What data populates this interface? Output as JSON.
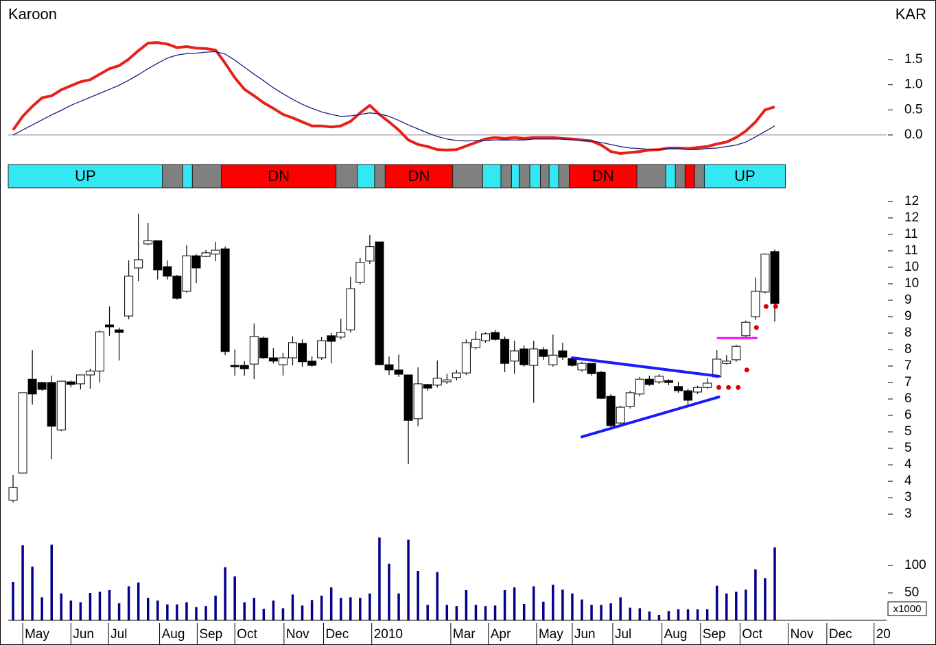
{
  "chart_data": [
    {
      "type": "line",
      "title": "Karoon",
      "symbol": "KAR",
      "series": [
        {
          "color": "#e8201a",
          "values": [
            0.1,
            0.37,
            0.57,
            0.74,
            0.78,
            0.9,
            0.98,
            1.06,
            1.1,
            1.21,
            1.32,
            1.38,
            1.51,
            1.68,
            1.83,
            1.84,
            1.81,
            1.74,
            1.76,
            1.73,
            1.72,
            1.69,
            1.43,
            1.14,
            0.91,
            0.78,
            0.64,
            0.53,
            0.41,
            0.34,
            0.26,
            0.18,
            0.18,
            0.16,
            0.18,
            0.27,
            0.44,
            0.59,
            0.41,
            0.26,
            0.1,
            -0.1,
            -0.19,
            -0.23,
            -0.29,
            -0.3,
            -0.29,
            -0.22,
            -0.15,
            -0.08,
            -0.05,
            -0.07,
            -0.05,
            -0.07,
            -0.05,
            -0.05,
            -0.05,
            -0.07,
            -0.08,
            -0.1,
            -0.12,
            -0.2,
            -0.33,
            -0.37,
            -0.35,
            -0.33,
            -0.3,
            -0.29,
            -0.26,
            -0.26,
            -0.27,
            -0.25,
            -0.23,
            -0.18,
            -0.14,
            -0.05,
            0.08,
            0.26,
            0.5,
            0.56
          ]
        },
        {
          "color": "#1c1c80",
          "values": [
            0,
            0.1,
            0.2,
            0.3,
            0.4,
            0.49,
            0.59,
            0.67,
            0.75,
            0.83,
            0.91,
            0.99,
            1.09,
            1.2,
            1.32,
            1.43,
            1.53,
            1.59,
            1.62,
            1.63,
            1.65,
            1.66,
            1.61,
            1.49,
            1.35,
            1.21,
            1.08,
            0.94,
            0.82,
            0.71,
            0.61,
            0.53,
            0.46,
            0.41,
            0.37,
            0.38,
            0.41,
            0.44,
            0.42,
            0.37,
            0.29,
            0.2,
            0.12,
            0.04,
            -0.03,
            -0.08,
            -0.11,
            -0.12,
            -0.11,
            -0.11,
            -0.1,
            -0.1,
            -0.1,
            -0.1,
            -0.08,
            -0.08,
            -0.08,
            -0.08,
            -0.1,
            -0.11,
            -0.12,
            -0.15,
            -0.19,
            -0.23,
            -0.26,
            -0.27,
            -0.29,
            -0.29,
            -0.27,
            -0.27,
            -0.29,
            -0.29,
            -0.27,
            -0.26,
            -0.23,
            -0.2,
            -0.14,
            -0.04,
            0.07,
            0.18
          ]
        }
      ],
      "ylim": [
        -0.52,
        2.62
      ],
      "yticks": [
        1.5,
        {
          "value": 1,
          "label": "1.0"
        },
        0.5,
        {
          "value": 0,
          "label": "0.0"
        }
      ],
      "zero_line": true
    },
    {
      "type": "regime",
      "segments": [
        {
          "from": -0.5,
          "to": 15.5,
          "color": "#33e8f2",
          "label": "UP"
        },
        {
          "from": 15.5,
          "to": 17.6,
          "color": "#808080"
        },
        {
          "from": 17.6,
          "to": 18.6,
          "color": "#33e8f2"
        },
        {
          "from": 18.6,
          "to": 21.6,
          "color": "#808080"
        },
        {
          "from": 21.6,
          "to": 33.5,
          "color": "#ff0000",
          "label": "DN"
        },
        {
          "from": 33.5,
          "to": 35.7,
          "color": "#808080"
        },
        {
          "from": 35.7,
          "to": 37.5,
          "color": "#33e8f2"
        },
        {
          "from": 37.5,
          "to": 38.6,
          "color": "#808080"
        },
        {
          "from": 38.6,
          "to": 45.6,
          "color": "#ff0000",
          "label": "DN"
        },
        {
          "from": 45.6,
          "to": 48.7,
          "color": "#808080"
        },
        {
          "from": 48.7,
          "to": 50.6,
          "color": "#33e8f2"
        },
        {
          "from": 50.6,
          "to": 51.7,
          "color": "#808080"
        },
        {
          "from": 51.7,
          "to": 52.5,
          "color": "#33e8f2"
        },
        {
          "from": 52.5,
          "to": 53.6,
          "color": "#808080"
        },
        {
          "from": 53.6,
          "to": 54.7,
          "color": "#33e8f2"
        },
        {
          "from": 54.7,
          "to": 55.6,
          "color": "#808080"
        },
        {
          "from": 55.6,
          "to": 56.6,
          "color": "#33e8f2"
        },
        {
          "from": 56.6,
          "to": 57.7,
          "color": "#808080"
        },
        {
          "from": 57.7,
          "to": 64.7,
          "color": "#ff0000",
          "label": "DN"
        },
        {
          "from": 64.7,
          "to": 67.7,
          "color": "#808080"
        },
        {
          "from": 67.7,
          "to": 68.7,
          "color": "#33e8f2"
        },
        {
          "from": 68.7,
          "to": 69.7,
          "color": "#808080"
        },
        {
          "from": 69.7,
          "to": 70.7,
          "color": "#ff0000"
        },
        {
          "from": 70.7,
          "to": 71.7,
          "color": "#808080"
        },
        {
          "from": 71.7,
          "to": 80.1,
          "color": "#33e8f2",
          "label": "UP"
        }
      ]
    },
    {
      "type": "candlestick",
      "open": [
        3.42,
        4.25,
        7.1,
        7.0,
        7.0,
        5.56,
        7.02,
        6.96,
        7.23,
        7.35,
        8.75,
        8.6,
        9.02,
        10.48,
        11.21,
        11.31,
        10.52,
        10.23,
        9.77,
        10.85,
        10.83,
        10.9,
        11.06,
        7.52,
        7.52,
        7.56,
        8.35,
        7.75,
        7.54,
        7.75,
        8.19,
        7.65,
        7.75,
        8.42,
        8.38,
        8.6,
        10.04,
        10.69,
        11.27,
        7.54,
        7.38,
        7.23,
        5.9,
        6.94,
        6.92,
        7.02,
        7.15,
        7.29,
        8.06,
        8.27,
        8.52,
        8.31,
        7.65,
        8.02,
        7.52,
        8.0,
        7.54,
        7.96,
        7.73,
        7.38,
        7.58,
        7.31,
        6.58,
        5.77,
        6.27,
        6.65,
        7.1,
        7.02,
        7.06,
        6.88,
        6.75,
        6.71,
        6.85,
        7.17,
        7.58,
        7.69,
        8.42,
        9.0,
        9.75,
        10.98
      ],
      "high": [
        4.19,
        6.69,
        7.98,
        7.02,
        7.21,
        7.06,
        7.06,
        7.23,
        7.42,
        8.58,
        9.31,
        8.67,
        10.71,
        12.13,
        11.85,
        11.31,
        10.71,
        10.27,
        11.17,
        10.9,
        11.02,
        11.27,
        11.13,
        8.0,
        7.65,
        8.79,
        8.4,
        8.04,
        7.9,
        8.4,
        8.31,
        7.79,
        8.38,
        8.5,
        8.94,
        10.21,
        10.79,
        11.48,
        11.27,
        7.79,
        7.85,
        7.23,
        7.46,
        6.96,
        7.67,
        7.27,
        7.38,
        8.31,
        8.56,
        8.52,
        8.6,
        8.4,
        8.27,
        8.13,
        8.27,
        8.08,
        8.46,
        8.21,
        7.77,
        7.63,
        7.58,
        7.35,
        6.65,
        6.29,
        6.75,
        7.17,
        7.21,
        7.25,
        7.1,
        7.02,
        6.81,
        6.9,
        7.13,
        7.98,
        7.83,
        8.15,
        8.88,
        10.19,
        10.92,
        11.04
      ],
      "low": [
        3.35,
        4.25,
        6.33,
        6.75,
        4.67,
        5.52,
        6.85,
        6.79,
        6.81,
        7.0,
        8.42,
        7.67,
        8.92,
        10.08,
        11.17,
        10.13,
        10.13,
        9.52,
        9.73,
        10.02,
        10.81,
        10.69,
        7.83,
        7.21,
        7.21,
        7.1,
        7.71,
        7.58,
        7.21,
        7.52,
        7.48,
        7.48,
        7.69,
        7.58,
        8.31,
        8.52,
        9.98,
        10.6,
        7.54,
        7.23,
        7.17,
        4.52,
        5.67,
        6.75,
        6.85,
        6.96,
        7.06,
        7.23,
        8.0,
        8.21,
        8.27,
        7.31,
        7.27,
        7.48,
        6.38,
        7.69,
        7.48,
        7.69,
        7.48,
        7.33,
        7.21,
        6.5,
        5.65,
        5.71,
        6.21,
        6.58,
        6.9,
        6.96,
        6.92,
        6.69,
        6.33,
        6.65,
        6.81,
        7.13,
        7.54,
        7.63,
        8.38,
        8.9,
        9.71,
        8.85
      ],
      "close": [
        3.81,
        6.69,
        6.65,
        6.79,
        5.67,
        7.04,
        6.94,
        7.23,
        7.35,
        8.54,
        8.69,
        8.52,
        10.23,
        10.73,
        11.31,
        10.42,
        10.23,
        9.56,
        10.85,
        10.48,
        10.94,
        11.02,
        7.94,
        7.48,
        7.42,
        8.4,
        7.75,
        7.65,
        7.75,
        8.21,
        7.63,
        7.52,
        8.27,
        8.25,
        8.52,
        9.85,
        10.65,
        11.13,
        7.54,
        7.38,
        7.25,
        5.85,
        6.96,
        6.83,
        7.13,
        7.08,
        7.29,
        8.21,
        8.31,
        8.48,
        8.31,
        7.58,
        7.96,
        7.54,
        8.02,
        7.79,
        7.83,
        7.77,
        7.52,
        7.58,
        7.27,
        6.52,
        5.69,
        6.25,
        6.69,
        7.1,
        6.94,
        7.19,
        7.0,
        6.75,
        6.46,
        6.85,
        6.98,
        7.71,
        7.65,
        8.1,
        8.83,
        9.77,
        10.9,
        9.4
      ],
      "up_color": "#ffffff",
      "down_color": "#000000",
      "ylim": [
        2.69,
        12.79
      ],
      "yticks": [
        {
          "value": 12.5,
          "label": "12"
        },
        12,
        {
          "value": 11.5,
          "label": "11"
        },
        11,
        {
          "value": 10.5,
          "label": "10"
        },
        10,
        {
          "value": 9.5,
          "label": "9"
        },
        9,
        {
          "value": 8.5,
          "label": "8"
        },
        8,
        {
          "value": 7.5,
          "label": "7"
        },
        7,
        {
          "value": 6.5,
          "label": "6"
        },
        6,
        {
          "value": 5.5,
          "label": "5"
        },
        5,
        {
          "value": 4.5,
          "label": "4"
        },
        4,
        {
          "value": 3.5,
          "label": "3"
        },
        3
      ],
      "trendlines": [
        {
          "color": "#1a1aff",
          "x": [
            58.0,
            73.2
          ],
          "values": [
            7.75,
            7.19
          ]
        },
        {
          "color": "#1a1aff",
          "x": [
            59.0,
            73.2
          ],
          "values": [
            5.35,
            6.56
          ]
        }
      ],
      "levels": [
        {
          "color": "#ff00ff",
          "from": 73.0,
          "to": 77.2,
          "value": 8.35
        }
      ],
      "stop_dots": {
        "color": "#e00000",
        "x": [
          73.2,
          74.2,
          75.2,
          76.1,
          77.1,
          78.1,
          79.1
        ],
        "values": [
          6.85,
          6.85,
          6.85,
          7.38,
          8.67,
          9.31,
          9.31
        ]
      }
    },
    {
      "type": "bar",
      "color": "#00008b",
      "values": [
        70,
        137,
        98,
        42,
        138,
        49,
        36,
        33,
        50,
        52,
        55,
        31,
        62,
        69,
        41,
        36,
        29,
        29,
        33,
        24,
        26,
        45,
        97,
        80,
        33,
        41,
        21,
        36,
        22,
        47,
        27,
        37,
        45,
        60,
        41,
        42,
        41,
        49,
        151,
        103,
        49,
        147,
        90,
        28,
        88,
        28,
        26,
        55,
        28,
        26,
        27,
        55,
        60,
        30,
        62,
        34,
        65,
        56,
        49,
        38,
        28,
        28,
        31,
        42,
        23,
        22,
        16,
        10,
        17,
        20,
        20,
        20,
        20,
        63,
        49,
        52,
        56,
        93,
        77,
        133
      ],
      "ylim": [
        0,
        162.5
      ],
      "yticks": [
        50,
        100
      ],
      "unit_label": "x1000",
      "xlim": [
        -0.5,
        90.6
      ],
      "xticks": [
        {
          "value": 1,
          "label": "May"
        },
        {
          "value": 6,
          "label": "Jun"
        },
        {
          "value": 9.9,
          "label": "Jul"
        },
        {
          "value": 15.2,
          "label": "Aug"
        },
        {
          "value": 19.1,
          "label": "Sep"
        },
        {
          "value": 23,
          "label": "Oct"
        },
        {
          "value": 28.1,
          "label": "Nov"
        },
        {
          "value": 32.2,
          "label": "Dec"
        },
        {
          "value": 37.2,
          "label": "2010"
        },
        {
          "value": 45.4,
          "label": "Mar"
        },
        {
          "value": 49.3,
          "label": "Apr"
        },
        {
          "value": 54.3,
          "label": "May"
        },
        {
          "value": 58,
          "label": "Jun"
        },
        {
          "value": 62.2,
          "label": "Jul"
        },
        {
          "value": 67.3,
          "label": "Aug"
        },
        {
          "value": 71.3,
          "label": "Sep"
        },
        {
          "value": 75.4,
          "label": "Oct"
        },
        {
          "value": 80.4,
          "label": "Nov"
        },
        {
          "value": 84.4,
          "label": "Dec"
        },
        {
          "value": 89.3,
          "label": "20"
        }
      ]
    }
  ]
}
